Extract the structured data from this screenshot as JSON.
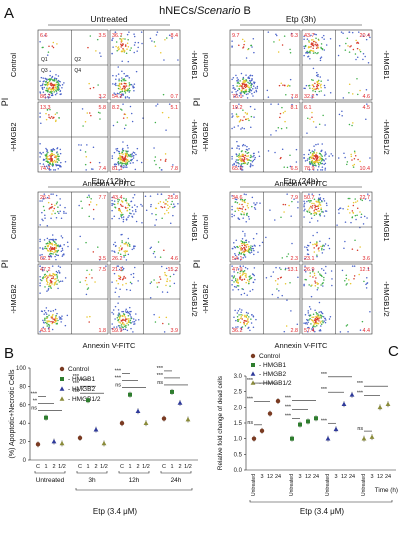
{
  "figure": {
    "panel_A": "A",
    "panel_B": "B",
    "panel_C": "C",
    "title_main": "hNECs/",
    "title_italic": "Scenario",
    "title_suffix": " B"
  },
  "flow": {
    "y_axis_label": "PI",
    "x_axis_label": "Annexin V-FITC",
    "row_top_label": "Control",
    "row_bottom_label": "-HMGB2",
    "col_right_top_label": "-HMGB1",
    "col_right_bottom_label": "-HMGB1/2",
    "quadrant_names": [
      "Q1",
      "Q2",
      "Q3",
      "Q4"
    ],
    "groups": [
      {
        "title": "Untreated",
        "plots": [
          [
            "6.6",
            "3.5",
            "86.7",
            "3.2"
          ],
          [
            "36.7",
            "8.4",
            "54.2",
            "0.7"
          ],
          [
            "13.3",
            "5.8",
            "74.7",
            "7.4"
          ],
          [
            "8.2",
            "5.1",
            "81.1",
            "7.8"
          ]
        ]
      },
      {
        "title": "Etp (3h)",
        "plots": [
          [
            "9.7",
            "6.3",
            "76.1",
            "7.8"
          ],
          [
            "43.7",
            "20.4",
            "32.2",
            "4.6"
          ],
          [
            "19.2",
            "8.1",
            "65.5",
            "6.5"
          ],
          [
            "6.1",
            "4.5",
            "78.9",
            "10.4"
          ]
        ]
      },
      {
        "title": "Etp (12h)",
        "plots": [
          [
            "26.1",
            "7.7",
            "62.1",
            "3.5"
          ],
          [
            "43.4",
            "25.8",
            "26.2",
            "4.6"
          ],
          [
            "47.2",
            "7.5",
            "43.1",
            "1.8"
          ],
          [
            "21.3",
            "15.2",
            "59.9",
            "3.9"
          ]
        ]
      },
      {
        "title": "Etp (24h)",
        "plots": [
          [
            "34.6",
            "7.9",
            "54.1",
            "2.3"
          ],
          [
            "50.7",
            "22.7",
            "23.1",
            "3.6"
          ],
          [
            "47.9",
            "13.1",
            "36.2",
            "2.8"
          ],
          [
            "26.9",
            "12.1",
            "57.4",
            "4.4"
          ]
        ]
      }
    ]
  },
  "panelB": {
    "ylabel": "(%) Apoptotic+Necrotic Cells",
    "xlabel": "Etp (3.4 μM)",
    "yticks": [
      "0",
      "20",
      "40",
      "60",
      "80",
      "100"
    ],
    "legend": [
      "Control",
      "- HMGB1",
      "- HMGB2",
      "- HMGB1/2"
    ],
    "group_labels": [
      "Untreated",
      "3h",
      "12h",
      "24h"
    ],
    "sub_labels": [
      "C",
      "1",
      "2",
      "1/2"
    ],
    "sig": {
      "ns": "ns",
      "s2": "**",
      "s3": "***"
    }
  },
  "panelC": {
    "ylabel": "Relative fold change of dead cells",
    "xlabel": "Etp (3.4 μM)",
    "time_label": "Time (h)",
    "yticks": [
      "0.0",
      "0.5",
      "1.0",
      "1.5",
      "2.0",
      "2.5",
      "3.0"
    ],
    "legend": [
      "Control",
      "- HMGB1",
      "- HMGB2",
      "- HMGB1/2"
    ],
    "untreated_label": "Untreated",
    "time_ticks": [
      "3",
      "12",
      "24"
    ],
    "sig": {
      "ns": "ns",
      "s3": "***"
    }
  },
  "colors": {
    "control": "#7a3b22",
    "hmgb1": "#2e7d2e",
    "hmgb2": "#2f3a9a",
    "hmgb12": "#8a8b3a",
    "quadrant_text": "#e0262b"
  },
  "chart_data": [
    {
      "type": "scatter",
      "title": "",
      "ylabel": "(%) Apoptotic+Necrotic Cells",
      "xlabel": "Etp (3.4 μM)",
      "categories": [
        "Untreated",
        "3h",
        "12h",
        "24h"
      ],
      "ylim": [
        0,
        100
      ],
      "series": [
        {
          "name": "Control",
          "values": [
            17,
            24,
            40,
            45
          ]
        },
        {
          "name": "- HMGB1",
          "values": [
            46,
            65,
            71,
            74
          ]
        },
        {
          "name": "- HMGB2",
          "values": [
            20,
            33,
            53,
            62
          ]
        },
        {
          "name": "- HMGB1/2",
          "values": [
            18,
            18,
            40,
            44
          ]
        }
      ]
    },
    {
      "type": "scatter",
      "title": "",
      "ylabel": "Relative fold change of dead cells",
      "xlabel": "Etp (3.4 μM)",
      "categories": [
        "Untreated",
        "3",
        "12",
        "24"
      ],
      "ylim": [
        0,
        3
      ],
      "series": [
        {
          "name": "Control",
          "values": [
            1.0,
            1.25,
            1.8,
            2.2
          ]
        },
        {
          "name": "- HMGB1",
          "values": [
            1.0,
            1.45,
            1.55,
            1.65
          ]
        },
        {
          "name": "- HMGB2",
          "values": [
            1.0,
            1.3,
            2.1,
            2.4
          ]
        },
        {
          "name": "- HMGB1/2",
          "values": [
            1.0,
            1.05,
            2.0,
            2.1
          ]
        }
      ]
    }
  ]
}
